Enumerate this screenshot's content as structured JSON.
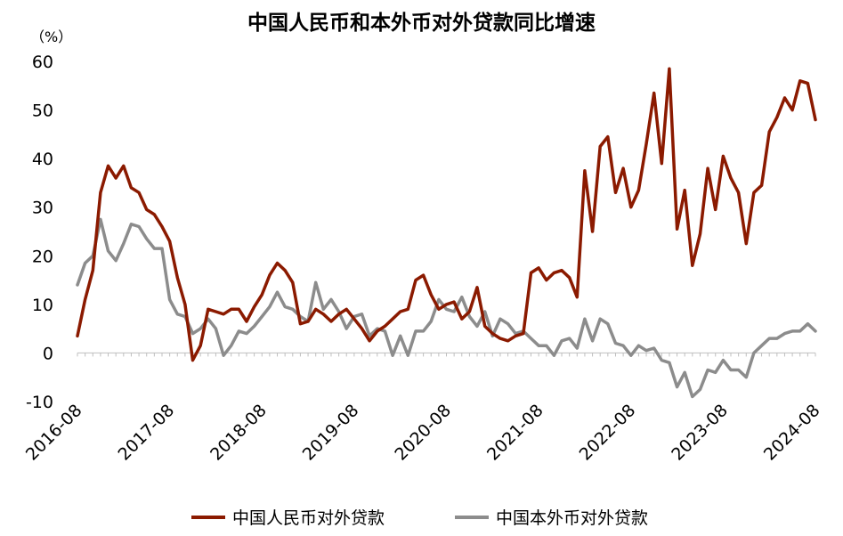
{
  "chart_data": {
    "type": "line",
    "title": "中国人民币和本外币对外贷款同比增速",
    "unit_label": "（%）",
    "ylim": [
      -10,
      60
    ],
    "yticks": [
      -10,
      0,
      10,
      20,
      30,
      40,
      50,
      60
    ],
    "xticks": [
      "2016-08",
      "2017-08",
      "2018-08",
      "2019-08",
      "2020-08",
      "2021-08",
      "2022-08",
      "2023-08",
      "2024-08"
    ],
    "x_start": "2016-08",
    "x_end": "2024-08",
    "series": [
      {
        "name": "中国人民币对外贷款",
        "color": "#8b1a00",
        "values": [
          3.5,
          11,
          17,
          33,
          38.5,
          36,
          38.5,
          34,
          33,
          29.5,
          28.5,
          26,
          23,
          15.5,
          10,
          -1.5,
          1.5,
          9,
          8.5,
          8,
          9,
          9,
          6.5,
          9.5,
          12,
          16,
          18.5,
          17,
          14.5,
          6,
          6.5,
          9,
          8,
          6.5,
          8,
          9,
          7,
          5,
          2.5,
          4.5,
          5.5,
          7,
          8.5,
          9,
          15,
          16,
          12,
          9,
          10,
          10.5,
          7,
          8.5,
          13.5,
          5.5,
          4,
          3,
          2.5,
          3.5,
          4,
          16.5,
          17.5,
          15,
          16.5,
          17,
          15.5,
          11.5,
          37.5,
          25,
          42.5,
          44.5,
          33,
          38,
          30,
          33.5,
          43,
          53.5,
          39,
          58.5,
          25.5,
          33.5,
          18,
          24.5,
          38,
          29.5,
          40.5,
          36,
          33,
          22.5,
          33,
          34.5,
          45.5,
          48.5,
          52.5,
          50,
          56,
          55.5,
          48
        ]
      },
      {
        "name": "中国本外币对外贷款",
        "color": "#8c8c8c",
        "values": [
          14,
          18.5,
          20,
          27.5,
          21,
          19,
          22.5,
          26.5,
          26,
          23.5,
          21.5,
          21.5,
          11,
          8,
          7.5,
          4,
          5,
          7,
          5,
          -0.5,
          1.5,
          4.5,
          4,
          5.5,
          7.5,
          9.5,
          12.5,
          9.5,
          9,
          7.5,
          6.5,
          14.5,
          9,
          11,
          8.5,
          5,
          7.5,
          8,
          3.5,
          5,
          4.5,
          -0.5,
          3.5,
          -0.5,
          4.5,
          4.5,
          6.5,
          11,
          9,
          8.5,
          11.5,
          7.5,
          5.5,
          8.5,
          3.5,
          7,
          6,
          4,
          4.5,
          3,
          1.5,
          1.5,
          -0.5,
          2.5,
          3,
          1,
          7,
          2.5,
          7,
          6,
          2,
          1.5,
          -0.5,
          1.5,
          0.5,
          1,
          -1.5,
          -2,
          -7,
          -4,
          -9,
          -7.5,
          -3.5,
          -4,
          -1.5,
          -3.5,
          -3.5,
          -5,
          0,
          1.5,
          3,
          3,
          4,
          4.5,
          4.5,
          6,
          4.5
        ]
      }
    ]
  }
}
